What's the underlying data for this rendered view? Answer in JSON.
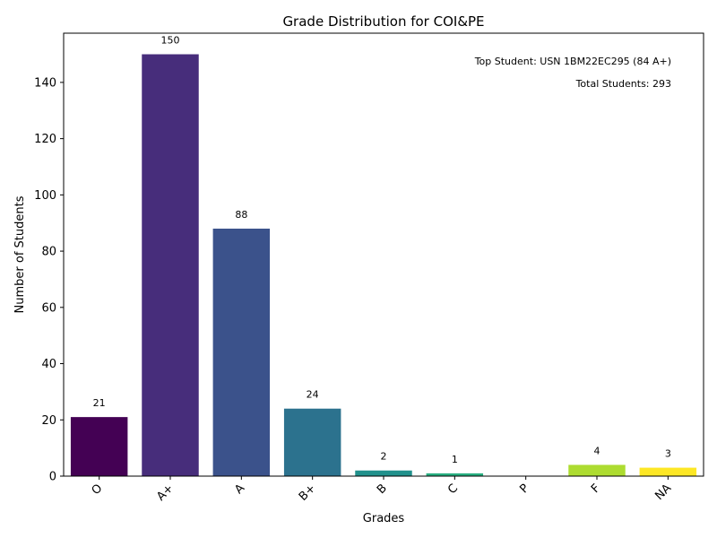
{
  "chart_data": {
    "type": "bar",
    "title": "Grade Distribution for COI&PE",
    "xlabel": "Grades",
    "ylabel": "Number of Students",
    "categories": [
      "O",
      "A+",
      "A",
      "B+",
      "B",
      "C",
      "P",
      "F",
      "NA"
    ],
    "values": [
      21,
      150,
      88,
      24,
      2,
      1,
      0,
      4,
      3
    ],
    "data_labels": [
      "21",
      "150",
      "88",
      "24",
      "2",
      "1",
      "",
      "4",
      "3"
    ],
    "colors": [
      "#440154",
      "#472d7b",
      "#3b528b",
      "#2c728e",
      "#21918c",
      "#28ae80",
      "#5ec962",
      "#addc30",
      "#fde725"
    ],
    "ylim": [
      0,
      157.5
    ],
    "yticks": [
      0,
      20,
      40,
      60,
      80,
      100,
      120,
      140
    ],
    "ytick_labels": [
      "0",
      "20",
      "40",
      "60",
      "80",
      "100",
      "120",
      "140"
    ],
    "grid": false,
    "annotations": [
      "Top Student: USN 1BM22EC295 (84 A+)",
      "Total Students: 293"
    ]
  }
}
